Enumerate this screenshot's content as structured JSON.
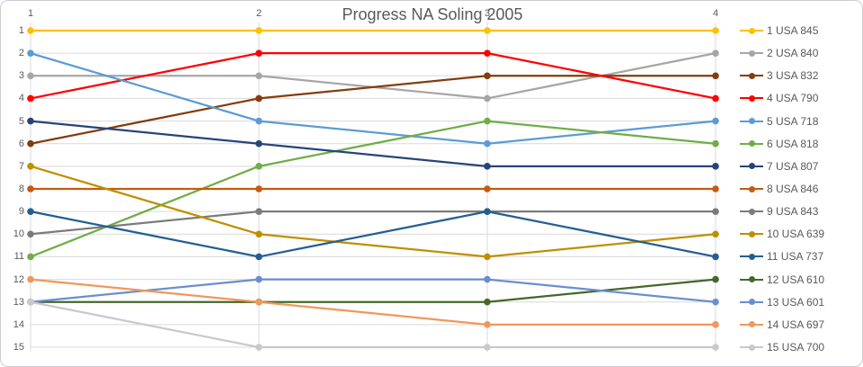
{
  "title": "Progress NA Soling 2005",
  "chart_data": {
    "type": "line",
    "variant": "bump-rank-progression",
    "title": "Progress NA Soling 2005",
    "xlabel": "",
    "ylabel": "",
    "x_ticks": [
      "1",
      "2",
      "3",
      "4"
    ],
    "y_ticks": [
      "1",
      "2",
      "3",
      "4",
      "5",
      "6",
      "7",
      "8",
      "9",
      "10",
      "11",
      "12",
      "13",
      "14",
      "15"
    ],
    "y_axis": {
      "min": 1,
      "max": 15,
      "inverted": true
    },
    "x_axis_position": "top",
    "grid": true,
    "legend_position": "right",
    "series": [
      {
        "name": "1 USA 845",
        "color": "#FFC000",
        "values": [
          1,
          1,
          1,
          1
        ]
      },
      {
        "name": "2 USA 840",
        "color": "#A6A6A6",
        "values": [
          3,
          3,
          4,
          2
        ]
      },
      {
        "name": "3 USA 832",
        "color": "#843C0C",
        "values": [
          6,
          4,
          3,
          3
        ]
      },
      {
        "name": "4 USA 790",
        "color": "#FF0000",
        "values": [
          4,
          2,
          2,
          4
        ]
      },
      {
        "name": "5 USA 718",
        "color": "#5B9BD5",
        "values": [
          2,
          5,
          6,
          5
        ]
      },
      {
        "name": "6 USA 818",
        "color": "#70AD47",
        "values": [
          11,
          7,
          5,
          6
        ]
      },
      {
        "name": "7 USA 807",
        "color": "#264478",
        "values": [
          5,
          6,
          7,
          7
        ]
      },
      {
        "name": "8 USA 846",
        "color": "#C55A11",
        "values": [
          8,
          8,
          8,
          8
        ]
      },
      {
        "name": "9 USA 843",
        "color": "#7B7B7B",
        "values": [
          10,
          9,
          9,
          9
        ]
      },
      {
        "name": "10 USA 639",
        "color": "#BF8F00",
        "values": [
          7,
          10,
          11,
          10
        ]
      },
      {
        "name": "11 USA 737",
        "color": "#255E91",
        "values": [
          9,
          11,
          9,
          11
        ]
      },
      {
        "name": "12 USA 610",
        "color": "#43682B",
        "values": [
          13,
          13,
          13,
          12
        ]
      },
      {
        "name": "13 USA 601",
        "color": "#698ED0",
        "values": [
          13,
          12,
          12,
          13
        ]
      },
      {
        "name": "14 USA 697",
        "color": "#F1975A",
        "values": [
          12,
          13,
          14,
          14
        ]
      },
      {
        "name": "15 USA 700",
        "color": "#C9C9C9",
        "values": [
          13,
          15,
          15,
          15
        ]
      }
    ]
  },
  "colors": {
    "text": "#595959",
    "gridline": "#D9D9D9",
    "background": "#FFFFFF",
    "frame_border": "#C9CCD6"
  }
}
